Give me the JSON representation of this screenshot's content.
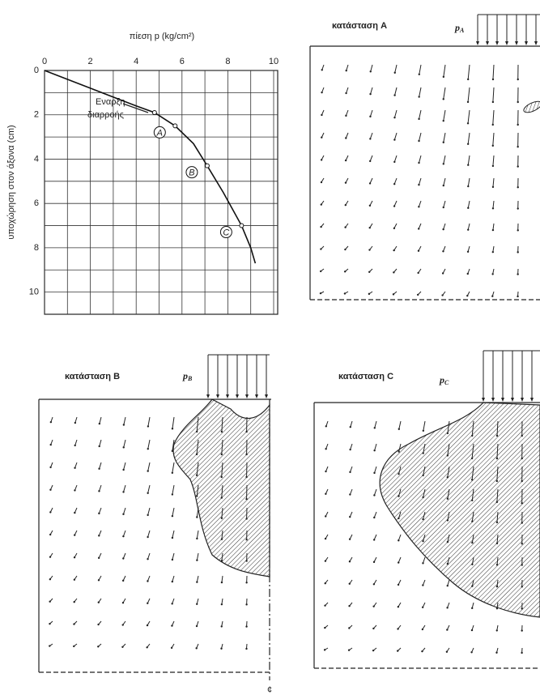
{
  "chart_data": {
    "type": "line",
    "title": "πίεση p (kg/cm²)",
    "y_label": "υποχώρηση στον άξονα (cm)",
    "x": [
      0,
      2,
      4,
      4.8,
      5.7,
      6.5,
      7.1,
      7.8,
      8.6,
      9.0,
      9.2
    ],
    "series": [
      {
        "color": "#111",
        "values": [
          0,
          0.8,
          1.6,
          1.9,
          2.5,
          3.3,
          4.3,
          5.5,
          7.0,
          8.0,
          8.7
        ]
      }
    ],
    "points": {
      "x": [
        4.8,
        5.7,
        7.1,
        8.6
      ],
      "y": [
        1.9,
        2.5,
        4.3,
        7.0
      ],
      "labels": [
        null,
        "A",
        "B",
        "C"
      ]
    },
    "annotation": [
      "Εναρξη",
      "διαρροής"
    ],
    "xlim": [
      0,
      10
    ],
    "ylim": [
      0,
      11
    ],
    "xticks": [
      0,
      2,
      4,
      6,
      8,
      10
    ],
    "yticks": [
      0,
      2,
      4,
      6,
      8,
      10
    ],
    "x_minor": [
      1,
      3,
      5,
      7,
      9
    ],
    "y_minor": [
      1,
      3,
      5,
      7,
      9
    ],
    "grid": true,
    "y_inverted": true
  },
  "panels": [
    {
      "title": "κατάσταση A",
      "load": "p",
      "load_sub": "A"
    },
    {
      "title": "κατάσταση B",
      "load": "p",
      "load_sub": "B"
    },
    {
      "title": "κατάσταση C",
      "load": "p",
      "load_sub": "C"
    }
  ],
  "centerline": "¢"
}
